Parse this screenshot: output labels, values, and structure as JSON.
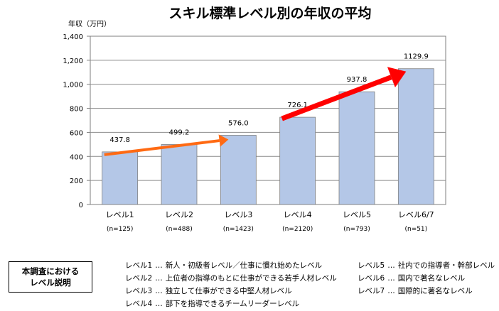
{
  "chart_data": {
    "type": "bar",
    "title": "スキル標準レベル別の年収の平均",
    "ylabel": "年収（万円）",
    "xlabel": "",
    "ylim": [
      0,
      1400
    ],
    "yticks": [
      "0",
      "200",
      "400",
      "600",
      "800",
      "1,000",
      "1,200",
      "1,400"
    ],
    "grid": true,
    "categories": [
      "レベル1",
      "レベル2",
      "レベル3",
      "レベル4",
      "レベル5",
      "レベル6/7"
    ],
    "sample_sizes": [
      "(n=125)",
      "(n=488)",
      "(n=1423)",
      "(n=2120)",
      "(n=793)",
      "(n=51)"
    ],
    "values": [
      437.8,
      499.2,
      576.0,
      726.1,
      937.8,
      1129.9
    ],
    "value_labels": [
      "437.8",
      "499.2",
      "576.0",
      "726.1",
      "937.8",
      "1129.9"
    ],
    "bar_color": "#b4c7e7",
    "annotations": [
      {
        "type": "arrow",
        "from_category": 0,
        "to_category": 2,
        "color": "#ff6a13"
      },
      {
        "type": "arrow",
        "from_category": 3,
        "to_category": 5,
        "color": "#ff0000"
      }
    ]
  },
  "legend_box": {
    "line1": "本調査における",
    "line2": "レベル説明"
  },
  "level_descriptions": [
    {
      "level": "レベル1",
      "sep": "…",
      "text": "新人・初級者レベル／仕事に慣れ始めたレベル"
    },
    {
      "level": "レベル2",
      "sep": "…",
      "text": "上位者の指導のもとに仕事ができる若手人材レベル"
    },
    {
      "level": "レベル3",
      "sep": "…",
      "text": "独立して仕事ができる中堅人材レベル"
    },
    {
      "level": "レベル4",
      "sep": "…",
      "text": "部下を指導できるチームリーダーレベル"
    },
    {
      "level": "レベル5",
      "sep": "…",
      "text": "社内での指導者・幹部レベル"
    },
    {
      "level": "レベル6",
      "sep": "…",
      "text": "国内で著名なレベル"
    },
    {
      "level": "レベル7",
      "sep": "…",
      "text": "国際的に著名なレベル"
    }
  ]
}
